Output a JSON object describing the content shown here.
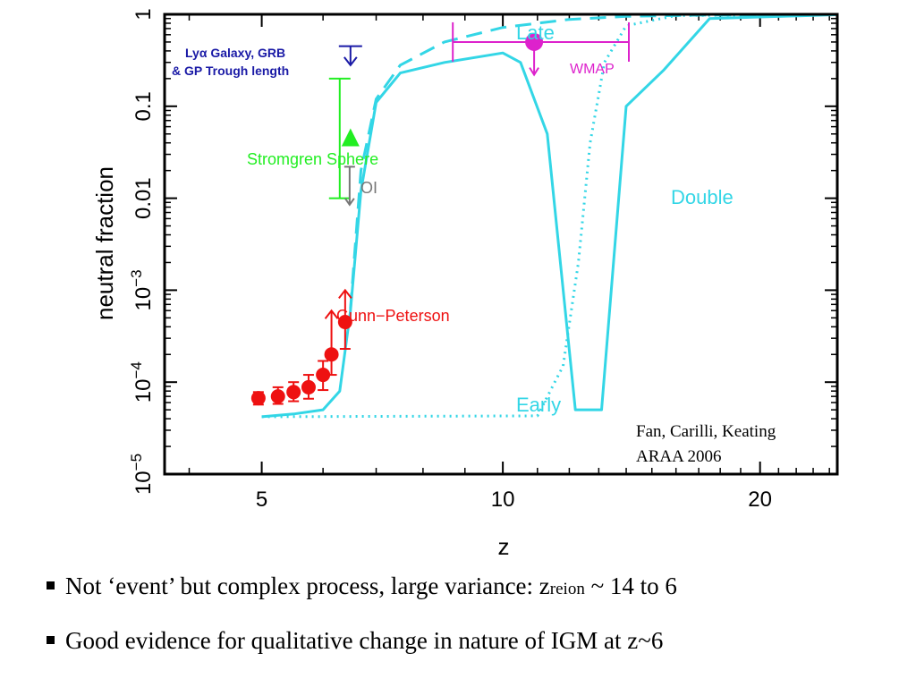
{
  "chart_data": {
    "type": "line",
    "xlabel": "z",
    "ylabel": "neutral fraction",
    "x_scale": "log(1+z)",
    "y_scale": "log",
    "xlim": [
      3.7,
      24.5
    ],
    "ylim": [
      1e-05,
      1
    ],
    "x_ticks": [
      {
        "value": 5,
        "label": "5"
      },
      {
        "value": 10,
        "label": "10"
      },
      {
        "value": 20,
        "label": "20"
      }
    ],
    "y_ticks": [
      {
        "value": 1,
        "base": "1",
        "exp": ""
      },
      {
        "value": 0.1,
        "base": "0.1",
        "exp": ""
      },
      {
        "value": 0.01,
        "base": "0.01",
        "exp": ""
      },
      {
        "value": 0.001,
        "base": "10",
        "exp": "−3"
      },
      {
        "value": 0.0001,
        "base": "10",
        "exp": "−4"
      },
      {
        "value": 1e-05,
        "base": "10",
        "exp": "−5"
      }
    ],
    "series": [
      {
        "name": "Late",
        "style": "dashed",
        "color": "#33d6e6",
        "points": [
          [
            6.5,
            0.00063
          ],
          [
            6.7,
            0.02
          ],
          [
            7.0,
            0.12
          ],
          [
            7.5,
            0.28
          ],
          [
            8.5,
            0.5
          ],
          [
            10,
            0.72
          ],
          [
            12,
            0.88
          ],
          [
            14,
            0.95
          ],
          [
            17,
            0.98
          ],
          [
            24.5,
            0.99
          ]
        ]
      },
      {
        "name": "Double",
        "style": "solid",
        "color": "#33d6e6",
        "points": [
          [
            5.0,
            4.2e-05
          ],
          [
            5.5,
            4.5e-05
          ],
          [
            6.0,
            5e-05
          ],
          [
            6.3,
            8e-05
          ],
          [
            6.5,
            0.0006
          ],
          [
            6.7,
            0.012
          ],
          [
            7.0,
            0.11
          ],
          [
            7.5,
            0.23
          ],
          [
            8.5,
            0.3
          ],
          [
            10,
            0.38
          ],
          [
            10.5,
            0.3
          ],
          [
            11.3,
            0.05
          ],
          [
            12.2,
            5e-05
          ],
          [
            13.1,
            5e-05
          ],
          [
            14,
            0.1
          ],
          [
            15.5,
            0.25
          ],
          [
            17.5,
            0.9
          ],
          [
            24.5,
            0.99
          ]
        ]
      },
      {
        "name": "Early",
        "style": "dotted",
        "color": "#33d6e6",
        "points": [
          [
            5.0,
            4.2e-05
          ],
          [
            11.0,
            4.3e-05
          ],
          [
            11.8,
            0.00015
          ],
          [
            12.3,
            0.002
          ],
          [
            12.7,
            0.04
          ],
          [
            13.2,
            0.3
          ],
          [
            14,
            0.75
          ],
          [
            16,
            0.97
          ],
          [
            24.5,
            0.99
          ]
        ]
      }
    ],
    "gunn_peterson": {
      "label": "Gunn−Peterson",
      "color": "#ee1111",
      "points": [
        {
          "z": 4.95,
          "value": 6.7e-05,
          "err_lo": 5.7e-05,
          "err_hi": 7.8e-05,
          "lower_limit": false
        },
        {
          "z": 5.25,
          "value": 7e-05,
          "err_lo": 5.8e-05,
          "err_hi": 8.8e-05,
          "lower_limit": false
        },
        {
          "z": 5.5,
          "value": 7.8e-05,
          "err_lo": 6.2e-05,
          "err_hi": 0.0001,
          "lower_limit": false
        },
        {
          "z": 5.75,
          "value": 8.8e-05,
          "err_lo": 6.6e-05,
          "err_hi": 0.00012,
          "lower_limit": false
        },
        {
          "z": 6.0,
          "value": 0.00012,
          "err_lo": 8.2e-05,
          "err_hi": 0.00017,
          "lower_limit": false
        },
        {
          "z": 6.15,
          "value": 0.0002,
          "err_lo": 0.00012,
          "err_hi": 0.0006,
          "lower_limit": true
        },
        {
          "z": 6.4,
          "value": 0.00045,
          "err_lo": 0.00023,
          "err_hi": 0.001,
          "lower_limit": true
        }
      ]
    },
    "lya_galaxy": {
      "label_line1": "Lyα Galaxy, GRB",
      "label_line2": "& GP Trough length",
      "color": "#1a1aa6",
      "z": 6.5,
      "value": 0.45,
      "limit_to": 0.28
    },
    "stromgren": {
      "label": "Stromgren Sphere",
      "color": "#22ee22",
      "z": 6.3,
      "value": 0.045,
      "range": [
        0.01,
        0.2
      ]
    },
    "oi": {
      "label": "OI",
      "color": "#777777",
      "z": 6.4,
      "value": 0.022,
      "limit_to": 0.0085
    },
    "wmap": {
      "label": "WMAP",
      "color": "#dd22cc",
      "z": 10.9,
      "value": 0.5,
      "z_range": [
        8.7,
        14.1
      ],
      "limit_to": 0.22
    },
    "annotations": {
      "late": "Late",
      "double": "Double",
      "early": "Early"
    }
  },
  "citation": {
    "line1": "Fan, Carilli, Keating",
    "line2": "ARAA 2006"
  },
  "bullets": [
    {
      "text": "Not ‘event’ but complex process, large variance:  z",
      "sub": "reion",
      "tail": " ~ 14 to 6"
    },
    {
      "text": "Good evidence for qualitative change in nature of IGM at z~6"
    }
  ]
}
